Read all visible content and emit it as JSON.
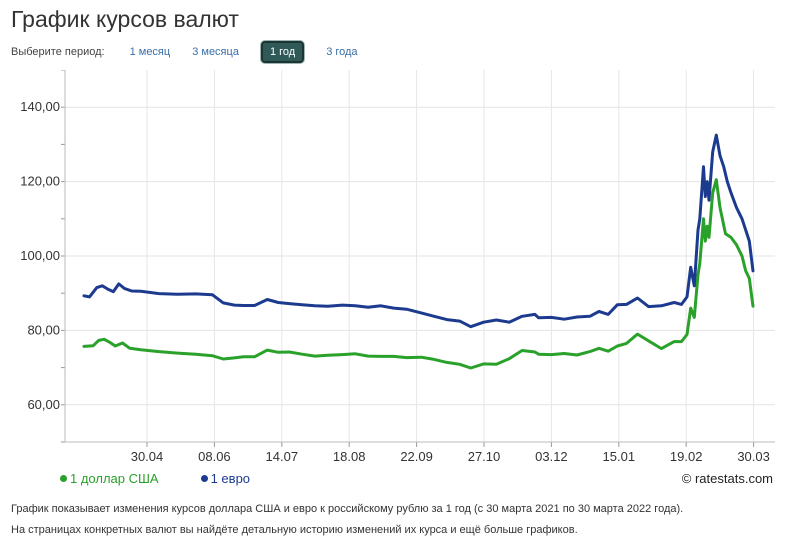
{
  "header": {
    "title": "График курсов валют",
    "period_label": "Выберите период:",
    "periods": [
      "1 месяц",
      "3 месяца",
      "1 год",
      "3 года"
    ],
    "active_period": "1 год"
  },
  "footer": {
    "source": "© ratestats.com",
    "note1": "График показывает изменения курсов доллара США и евро к российскому рублю за 1 год (с 30 марта 2021 по 30 марта 2022 года).",
    "note2": "На страницах конкретных валют вы найдёте детальную историю изменений их курса и ещё больше графиков."
  },
  "chart_data": {
    "type": "line",
    "x_ticks": [
      "30.04",
      "08.06",
      "14.07",
      "18.08",
      "22.09",
      "27.10",
      "03.12",
      "15.01",
      "19.02",
      "30.03"
    ],
    "y_ticks": [
      "60,00",
      "80,00",
      "100,00",
      "120,00",
      "140,00"
    ],
    "ylim": [
      50,
      150
    ],
    "x_range": [
      "2021-03-30",
      "2022-03-30"
    ],
    "grid": true,
    "legend_position": "bottom-left",
    "series": [
      {
        "name": "1 доллар США",
        "color": "#2aa12a",
        "points": [
          [
            "2021-03-30",
            75.7
          ],
          [
            "2021-04-04",
            75.9
          ],
          [
            "2021-04-07",
            77.3
          ],
          [
            "2021-04-10",
            77.6
          ],
          [
            "2021-04-13",
            76.8
          ],
          [
            "2021-04-16",
            75.8
          ],
          [
            "2021-04-20",
            76.6
          ],
          [
            "2021-04-24",
            75.2
          ],
          [
            "2021-04-30",
            74.8
          ],
          [
            "2021-05-10",
            74.3
          ],
          [
            "2021-05-20",
            73.9
          ],
          [
            "2021-05-30",
            73.6
          ],
          [
            "2021-06-08",
            73.2
          ],
          [
            "2021-06-14",
            72.3
          ],
          [
            "2021-06-20",
            72.6
          ],
          [
            "2021-06-25",
            72.9
          ],
          [
            "2021-07-01",
            72.9
          ],
          [
            "2021-07-08",
            74.7
          ],
          [
            "2021-07-14",
            74.1
          ],
          [
            "2021-07-20",
            74.2
          ],
          [
            "2021-07-27",
            73.6
          ],
          [
            "2021-08-03",
            73.1
          ],
          [
            "2021-08-10",
            73.3
          ],
          [
            "2021-08-18",
            73.5
          ],
          [
            "2021-08-25",
            73.7
          ],
          [
            "2021-09-01",
            73.1
          ],
          [
            "2021-09-08",
            73.0
          ],
          [
            "2021-09-15",
            73.0
          ],
          [
            "2021-09-22",
            72.7
          ],
          [
            "2021-09-30",
            72.8
          ],
          [
            "2021-10-07",
            72.2
          ],
          [
            "2021-10-14",
            71.4
          ],
          [
            "2021-10-21",
            70.9
          ],
          [
            "2021-10-27",
            69.9
          ],
          [
            "2021-11-03",
            71.0
          ],
          [
            "2021-11-10",
            70.9
          ],
          [
            "2021-11-17",
            72.4
          ],
          [
            "2021-11-24",
            74.6
          ],
          [
            "2021-12-01",
            74.2
          ],
          [
            "2021-12-03",
            73.6
          ],
          [
            "2021-12-10",
            73.5
          ],
          [
            "2021-12-17",
            73.8
          ],
          [
            "2021-12-24",
            73.4
          ],
          [
            "2021-12-31",
            74.3
          ],
          [
            "2022-01-05",
            75.2
          ],
          [
            "2022-01-10",
            74.4
          ],
          [
            "2022-01-15",
            75.8
          ],
          [
            "2022-01-20",
            76.5
          ],
          [
            "2022-01-26",
            79.0
          ],
          [
            "2022-02-01",
            77.2
          ],
          [
            "2022-02-08",
            75.1
          ],
          [
            "2022-02-15",
            77.0
          ],
          [
            "2022-02-19",
            77.0
          ],
          [
            "2022-02-22",
            78.9
          ],
          [
            "2022-02-24",
            86.0
          ],
          [
            "2022-02-26",
            83.5
          ],
          [
            "2022-02-28",
            95.0
          ],
          [
            "2022-03-01",
            98.0
          ],
          [
            "2022-03-03",
            110.0
          ],
          [
            "2022-03-04",
            104.0
          ],
          [
            "2022-03-05",
            108.0
          ],
          [
            "2022-03-06",
            105.0
          ],
          [
            "2022-03-08",
            117.0
          ],
          [
            "2022-03-10",
            120.5
          ],
          [
            "2022-03-12",
            113.0
          ],
          [
            "2022-03-15",
            106.0
          ],
          [
            "2022-03-18",
            105.0
          ],
          [
            "2022-03-21",
            103.0
          ],
          [
            "2022-03-24",
            100.0
          ],
          [
            "2022-03-26",
            96.0
          ],
          [
            "2022-03-28",
            94.0
          ],
          [
            "2022-03-30",
            86.5
          ]
        ]
      },
      {
        "name": "1 евро",
        "color": "#1c3b8f",
        "points": [
          [
            "2021-03-30",
            89.3
          ],
          [
            "2021-04-02",
            89.0
          ],
          [
            "2021-04-06",
            91.5
          ],
          [
            "2021-04-09",
            92.0
          ],
          [
            "2021-04-12",
            91.1
          ],
          [
            "2021-04-15",
            90.4
          ],
          [
            "2021-04-18",
            92.5
          ],
          [
            "2021-04-21",
            91.3
          ],
          [
            "2021-04-25",
            90.6
          ],
          [
            "2021-04-30",
            90.5
          ],
          [
            "2021-05-10",
            89.9
          ],
          [
            "2021-05-20",
            89.7
          ],
          [
            "2021-05-30",
            89.8
          ],
          [
            "2021-06-08",
            89.6
          ],
          [
            "2021-06-14",
            87.4
          ],
          [
            "2021-06-20",
            86.8
          ],
          [
            "2021-06-25",
            86.7
          ],
          [
            "2021-07-01",
            86.7
          ],
          [
            "2021-07-08",
            88.3
          ],
          [
            "2021-07-14",
            87.5
          ],
          [
            "2021-07-20",
            87.2
          ],
          [
            "2021-07-27",
            86.9
          ],
          [
            "2021-08-03",
            86.6
          ],
          [
            "2021-08-10",
            86.5
          ],
          [
            "2021-08-18",
            86.8
          ],
          [
            "2021-08-25",
            86.6
          ],
          [
            "2021-09-01",
            86.2
          ],
          [
            "2021-09-08",
            86.6
          ],
          [
            "2021-09-15",
            86.0
          ],
          [
            "2021-09-22",
            85.7
          ],
          [
            "2021-09-30",
            84.7
          ],
          [
            "2021-10-07",
            83.8
          ],
          [
            "2021-10-14",
            82.9
          ],
          [
            "2021-10-21",
            82.5
          ],
          [
            "2021-10-27",
            81.0
          ],
          [
            "2021-11-03",
            82.2
          ],
          [
            "2021-11-10",
            82.8
          ],
          [
            "2021-11-17",
            82.2
          ],
          [
            "2021-11-24",
            83.8
          ],
          [
            "2021-12-01",
            84.3
          ],
          [
            "2021-12-03",
            83.4
          ],
          [
            "2021-12-10",
            83.5
          ],
          [
            "2021-12-17",
            83.0
          ],
          [
            "2021-12-24",
            83.6
          ],
          [
            "2021-12-31",
            83.8
          ],
          [
            "2022-01-05",
            85.1
          ],
          [
            "2022-01-10",
            84.3
          ],
          [
            "2022-01-15",
            86.9
          ],
          [
            "2022-01-20",
            87.0
          ],
          [
            "2022-01-26",
            88.7
          ],
          [
            "2022-02-01",
            86.4
          ],
          [
            "2022-02-08",
            86.6
          ],
          [
            "2022-02-15",
            87.5
          ],
          [
            "2022-02-19",
            87.0
          ],
          [
            "2022-02-22",
            89.0
          ],
          [
            "2022-02-24",
            97.0
          ],
          [
            "2022-02-26",
            92.0
          ],
          [
            "2022-02-28",
            107.0
          ],
          [
            "2022-03-01",
            110.0
          ],
          [
            "2022-03-03",
            124.0
          ],
          [
            "2022-03-04",
            116.0
          ],
          [
            "2022-03-05",
            120.0
          ],
          [
            "2022-03-06",
            115.0
          ],
          [
            "2022-03-08",
            128.0
          ],
          [
            "2022-03-10",
            132.5
          ],
          [
            "2022-03-12",
            127.0
          ],
          [
            "2022-03-14",
            124.0
          ],
          [
            "2022-03-16",
            120.0
          ],
          [
            "2022-03-18",
            117.0
          ],
          [
            "2022-03-21",
            113.0
          ],
          [
            "2022-03-24",
            110.0
          ],
          [
            "2022-03-26",
            107.0
          ],
          [
            "2022-03-28",
            104.0
          ],
          [
            "2022-03-30",
            96.0
          ]
        ]
      }
    ]
  }
}
